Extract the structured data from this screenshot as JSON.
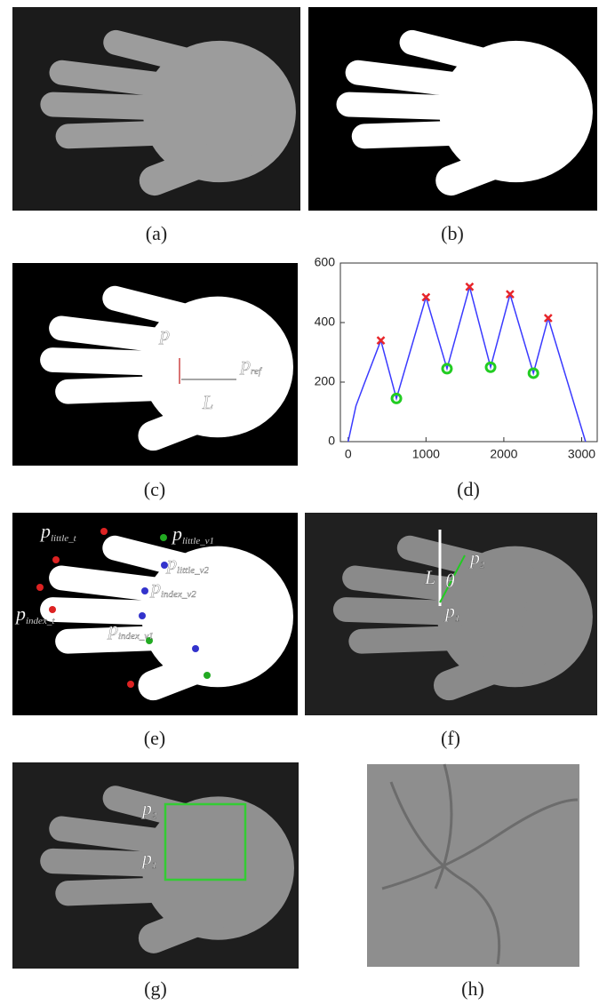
{
  "panels": [
    {
      "caption": "(a)"
    },
    {
      "caption": "(b)"
    },
    {
      "caption": "(c)",
      "labels": [
        {
          "text": "p"
        },
        {
          "text": "L"
        },
        {
          "text": "p",
          "sub": "ref"
        }
      ]
    },
    {
      "caption": "(d)"
    },
    {
      "caption": "(e)",
      "labels": [
        {
          "text": "p",
          "sub": "little_t"
        },
        {
          "text": "p",
          "sub": "little_v1"
        },
        {
          "text": "p",
          "sub": "little_v2"
        },
        {
          "text": "p",
          "sub": "index_v2"
        },
        {
          "text": "p",
          "sub": "index_t"
        },
        {
          "text": "p",
          "sub": "index_v1"
        }
      ]
    },
    {
      "caption": "(f)",
      "labels": [
        {
          "text": "p",
          "sub": "2"
        },
        {
          "text": "L"
        },
        {
          "text": "θ"
        },
        {
          "text": "p",
          "sub": "1"
        }
      ]
    },
    {
      "caption": "(g)",
      "labels": [
        {
          "text": "p",
          "sub": "2"
        },
        {
          "text": "p",
          "sub": "1"
        }
      ]
    },
    {
      "caption": "(h)"
    }
  ],
  "chart_data": {
    "type": "line",
    "series": [
      {
        "color": "#3a3aff",
        "x": [
          0,
          100,
          200,
          420,
          620,
          1000,
          1270,
          1560,
          1830,
          2080,
          2380,
          2570,
          3050
        ],
        "values": [
          0,
          120,
          190,
          340,
          145,
          485,
          245,
          520,
          250,
          495,
          230,
          415,
          0
        ]
      },
      {
        "color": "#e8262a",
        "marker": "x",
        "x": [
          420,
          1000,
          1560,
          2080,
          2570
        ],
        "values": [
          340,
          485,
          520,
          495,
          415
        ]
      },
      {
        "color": "#22cc22",
        "marker": "circle",
        "x": [
          620,
          1270,
          1830,
          2380
        ],
        "values": [
          145,
          245,
          250,
          230
        ]
      }
    ],
    "xlim": [
      -100,
      3200
    ],
    "xticks": [
      0,
      1000,
      2000,
      3000
    ],
    "ylim": [
      0,
      600
    ],
    "yticks": [
      0,
      200,
      400,
      600
    ]
  }
}
